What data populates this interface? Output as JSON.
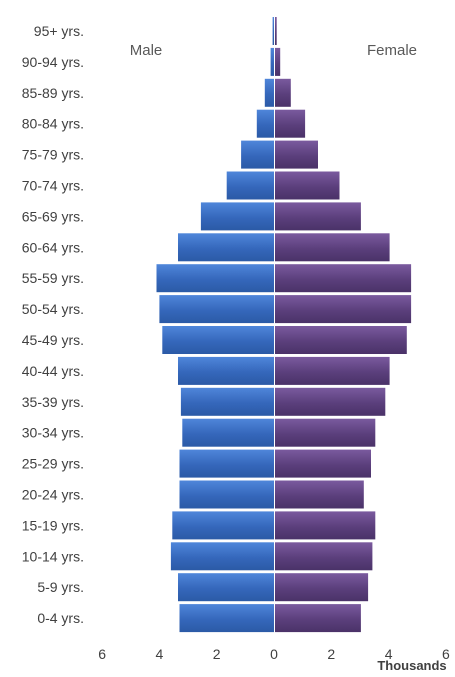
{
  "chart_data": {
    "type": "bar",
    "orientation": "horizontal-population-pyramid",
    "categories": [
      "0-4 yrs.",
      "5-9 yrs.",
      "10-14 yrs.",
      "15-19 yrs.",
      "20-24 yrs.",
      "25-29 yrs.",
      "30-34 yrs.",
      "35-39 yrs.",
      "40-44 yrs.",
      "45-49 yrs.",
      "50-54 yrs.",
      "55-59 yrs.",
      "60-64 yrs.",
      "65-69 yrs.",
      "70-74 yrs.",
      "75-79 yrs.",
      "80-84 yrs.",
      "85-89 yrs.",
      "90-94 yrs.",
      "95+ yrs."
    ],
    "series": [
      {
        "name": "Male",
        "values": [
          3.3,
          3.35,
          3.6,
          3.55,
          3.3,
          3.3,
          3.2,
          3.25,
          3.35,
          3.9,
          4.0,
          4.1,
          3.35,
          2.55,
          1.65,
          1.15,
          0.6,
          0.32,
          0.12,
          0.05
        ],
        "color": "#3a6fc4"
      },
      {
        "name": "Female",
        "values": [
          3.0,
          3.25,
          3.4,
          3.5,
          3.1,
          3.35,
          3.5,
          3.85,
          4.0,
          4.6,
          4.75,
          4.75,
          4.0,
          3.0,
          2.25,
          1.5,
          1.05,
          0.55,
          0.18,
          0.06
        ],
        "color": "#6a4c8c"
      }
    ],
    "xlim": [
      -6,
      6
    ],
    "xticks": [
      -6,
      -4,
      -2,
      0,
      2,
      4,
      6
    ],
    "xtick_labels": [
      "6",
      "4",
      "2",
      "0",
      "2",
      "4",
      "6"
    ],
    "xlabel": "Thousands",
    "grid": false,
    "series_labels_position": "top-inside"
  }
}
